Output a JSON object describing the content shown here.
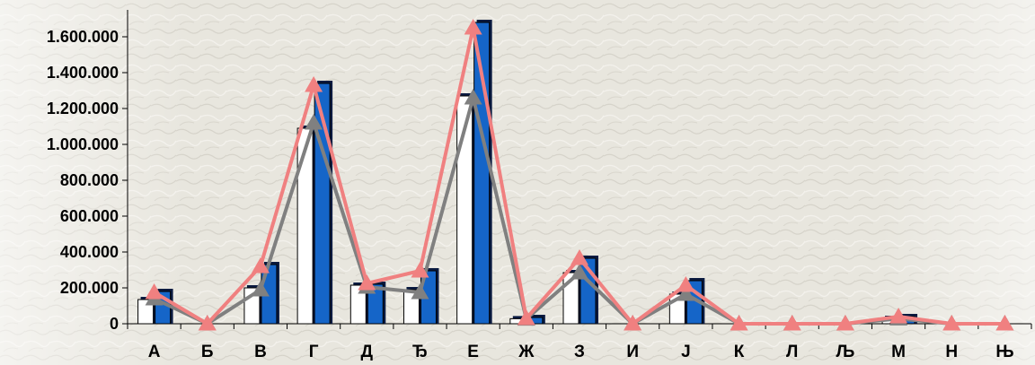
{
  "chart_data": {
    "type": "bar",
    "categories": [
      "А",
      "Б",
      "В",
      "Г",
      "Д",
      "Ђ",
      "Е",
      "Ж",
      "З",
      "И",
      "Ј",
      "К",
      "Л",
      "Љ",
      "М",
      "Н",
      "Њ"
    ],
    "ylim": [
      0,
      1700000
    ],
    "yticks": [
      "0",
      "200.000",
      "400.000",
      "600.000",
      "800.000",
      "1.000.000",
      "1.200.000",
      "1.400.000",
      "1.600.000"
    ],
    "ytick_values": [
      0,
      200000,
      400000,
      600000,
      800000,
      1000000,
      1200000,
      1400000,
      1600000
    ],
    "grid": false,
    "legend": "none",
    "title": "",
    "xlabel": "",
    "ylabel": "",
    "series": [
      {
        "kind": "bar",
        "color": "#ffffff",
        "values": [
          135000,
          0,
          200000,
          1090000,
          215000,
          190000,
          1270000,
          28000,
          285000,
          0,
          165000,
          0,
          0,
          0,
          30000,
          0,
          0
        ]
      },
      {
        "kind": "bar",
        "color": "#1565c8",
        "values": [
          180000,
          0,
          330000,
          1340000,
          220000,
          295000,
          1680000,
          35000,
          365000,
          0,
          240000,
          0,
          0,
          0,
          40000,
          0,
          0
        ]
      },
      {
        "kind": "line",
        "color": "#808080",
        "marker": "triangle",
        "values": [
          140000,
          0,
          190000,
          1120000,
          205000,
          175000,
          1260000,
          27000,
          285000,
          0,
          165000,
          0,
          0,
          0,
          28000,
          0,
          0
        ]
      },
      {
        "kind": "line",
        "color": "#f08080",
        "marker": "triangle",
        "values": [
          175000,
          0,
          320000,
          1330000,
          225000,
          295000,
          1650000,
          30000,
          365000,
          0,
          215000,
          0,
          0,
          0,
          40000,
          0,
          0
        ]
      }
    ]
  }
}
